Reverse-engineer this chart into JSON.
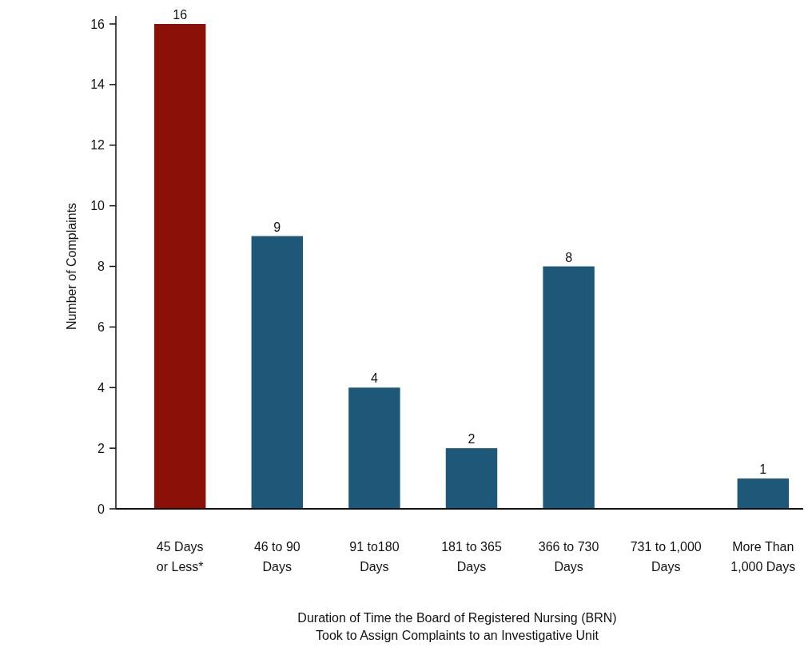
{
  "chart_data": {
    "type": "bar",
    "xlabel": "Duration of Time the Board of Registered Nursing (BRN)\nTook to Assign Complaints to an Investigative Unit",
    "ylabel": "Number of Complaints",
    "categories": [
      "45 Days\nor Less*",
      "46 to 90\nDays",
      "91 to180\nDays",
      "181 to 365\nDays",
      "366 to 730\nDays",
      "731 to 1,000\nDays",
      "More Than\n1,000 Days"
    ],
    "values": [
      16,
      9,
      4,
      2,
      8,
      0,
      1
    ],
    "colors": [
      "#8b1008",
      "#1e5878",
      "#1e5878",
      "#1e5878",
      "#1e5878",
      "#1e5878",
      "#1e5878"
    ],
    "value_labels": [
      "16",
      "9",
      "4",
      "2",
      "8",
      null,
      "1"
    ],
    "ylim": [
      0,
      16
    ],
    "yticks": [
      0,
      2,
      4,
      6,
      8,
      10,
      12,
      14,
      16
    ],
    "grid": false
  }
}
